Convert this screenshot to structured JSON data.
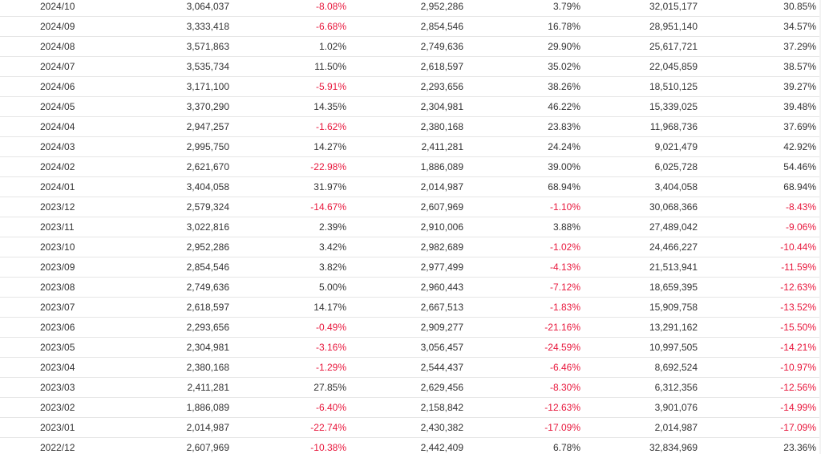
{
  "colors": {
    "negative": "#e8173c",
    "text": "#333333",
    "border": "#e6e6e6"
  },
  "rows": [
    [
      "2024/10",
      "3,064,037",
      "-8.08%",
      "2,952,286",
      "3.79%",
      "32,015,177",
      "30.85%"
    ],
    [
      "2024/09",
      "3,333,418",
      "-6.68%",
      "2,854,546",
      "16.78%",
      "28,951,140",
      "34.57%"
    ],
    [
      "2024/08",
      "3,571,863",
      "1.02%",
      "2,749,636",
      "29.90%",
      "25,617,721",
      "37.29%"
    ],
    [
      "2024/07",
      "3,535,734",
      "11.50%",
      "2,618,597",
      "35.02%",
      "22,045,859",
      "38.57%"
    ],
    [
      "2024/06",
      "3,171,100",
      "-5.91%",
      "2,293,656",
      "38.26%",
      "18,510,125",
      "39.27%"
    ],
    [
      "2024/05",
      "3,370,290",
      "14.35%",
      "2,304,981",
      "46.22%",
      "15,339,025",
      "39.48%"
    ],
    [
      "2024/04",
      "2,947,257",
      "-1.62%",
      "2,380,168",
      "23.83%",
      "11,968,736",
      "37.69%"
    ],
    [
      "2024/03",
      "2,995,750",
      "14.27%",
      "2,411,281",
      "24.24%",
      "9,021,479",
      "42.92%"
    ],
    [
      "2024/02",
      "2,621,670",
      "-22.98%",
      "1,886,089",
      "39.00%",
      "6,025,728",
      "54.46%"
    ],
    [
      "2024/01",
      "3,404,058",
      "31.97%",
      "2,014,987",
      "68.94%",
      "3,404,058",
      "68.94%"
    ],
    [
      "2023/12",
      "2,579,324",
      "-14.67%",
      "2,607,969",
      "-1.10%",
      "30,068,366",
      "-8.43%"
    ],
    [
      "2023/11",
      "3,022,816",
      "2.39%",
      "2,910,006",
      "3.88%",
      "27,489,042",
      "-9.06%"
    ],
    [
      "2023/10",
      "2,952,286",
      "3.42%",
      "2,982,689",
      "-1.02%",
      "24,466,227",
      "-10.44%"
    ],
    [
      "2023/09",
      "2,854,546",
      "3.82%",
      "2,977,499",
      "-4.13%",
      "21,513,941",
      "-11.59%"
    ],
    [
      "2023/08",
      "2,749,636",
      "5.00%",
      "2,960,443",
      "-7.12%",
      "18,659,395",
      "-12.63%"
    ],
    [
      "2023/07",
      "2,618,597",
      "14.17%",
      "2,667,513",
      "-1.83%",
      "15,909,758",
      "-13.52%"
    ],
    [
      "2023/06",
      "2,293,656",
      "-0.49%",
      "2,909,277",
      "-21.16%",
      "13,291,162",
      "-15.50%"
    ],
    [
      "2023/05",
      "2,304,981",
      "-3.16%",
      "3,056,457",
      "-24.59%",
      "10,997,505",
      "-14.21%"
    ],
    [
      "2023/04",
      "2,380,168",
      "-1.29%",
      "2,544,437",
      "-6.46%",
      "8,692,524",
      "-10.97%"
    ],
    [
      "2023/03",
      "2,411,281",
      "27.85%",
      "2,629,456",
      "-8.30%",
      "6,312,356",
      "-12.56%"
    ],
    [
      "2023/02",
      "1,886,089",
      "-6.40%",
      "2,158,842",
      "-12.63%",
      "3,901,076",
      "-14.99%"
    ],
    [
      "2023/01",
      "2,014,987",
      "-22.74%",
      "2,430,382",
      "-17.09%",
      "2,014,987",
      "-17.09%"
    ],
    [
      "2022/12",
      "2,607,969",
      "-10.38%",
      "2,442,409",
      "6.78%",
      "32,834,969",
      "23.36%"
    ]
  ]
}
